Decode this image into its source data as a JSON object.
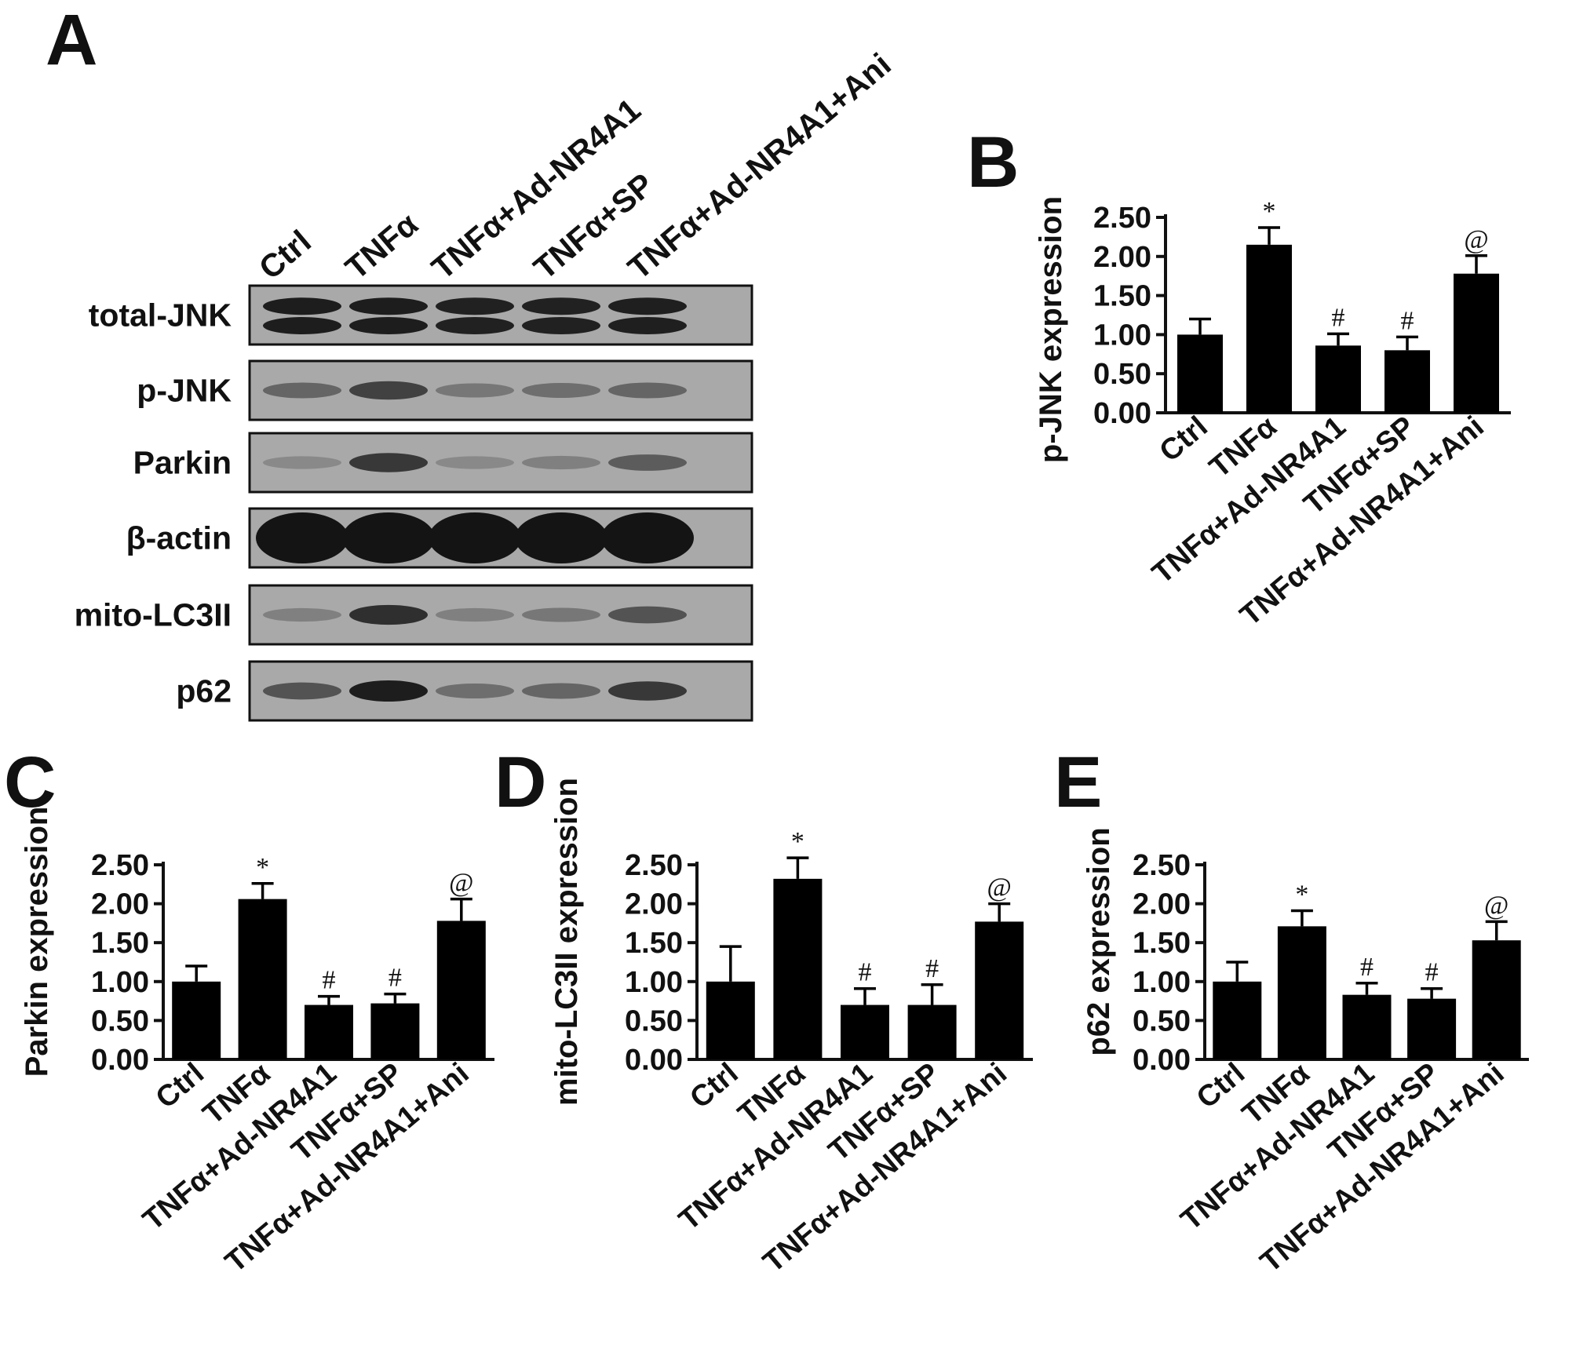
{
  "panels": {
    "A": "A",
    "B": "B",
    "C": "C",
    "D": "D",
    "E": "E"
  },
  "blot": {
    "lanes": [
      "Ctrl",
      "TNFα",
      "TNFα+Ad-NR4A1",
      "TNFα+SP",
      "TNFα+Ad-NR4A1+Ani"
    ],
    "rows": [
      {
        "label": "total-JNK",
        "intensity": [
          0.95,
          0.95,
          0.93,
          0.93,
          0.94
        ],
        "double": true
      },
      {
        "label": "p-JNK",
        "intensity": [
          0.55,
          0.75,
          0.45,
          0.5,
          0.55
        ],
        "double": false
      },
      {
        "label": "Parkin",
        "intensity": [
          0.35,
          0.8,
          0.35,
          0.4,
          0.6
        ],
        "double": false
      },
      {
        "label": "β-actin",
        "intensity": [
          1.0,
          1.0,
          1.0,
          1.0,
          1.0
        ],
        "double": false
      },
      {
        "label": "mito-LC3II",
        "intensity": [
          0.4,
          0.85,
          0.4,
          0.45,
          0.65
        ],
        "double": false
      },
      {
        "label": "p62",
        "intensity": [
          0.65,
          0.95,
          0.5,
          0.55,
          0.8
        ],
        "double": false
      }
    ]
  },
  "chart_data": [
    {
      "panel": "B",
      "type": "bar",
      "categories": [
        "Ctrl",
        "TNFα",
        "TNFα+Ad-NR4A1",
        "TNFα+SP",
        "TNFα+Ad-NR4A1+Ani"
      ],
      "values": [
        1.0,
        2.15,
        0.86,
        0.8,
        1.78
      ],
      "errors": [
        0.2,
        0.22,
        0.15,
        0.17,
        0.23
      ],
      "significance": [
        "",
        "*",
        "#",
        "#",
        "@"
      ],
      "ylabel": "p-JNK expression",
      "ylim": [
        0,
        2.5
      ],
      "yticks": [
        "0.00",
        "0.50",
        "1.00",
        "1.50",
        "2.00",
        "2.50"
      ]
    },
    {
      "panel": "C",
      "type": "bar",
      "categories": [
        "Ctrl",
        "TNFα",
        "TNFα+Ad-NR4A1",
        "TNFα+SP",
        "TNFα+Ad-NR4A1+Ani"
      ],
      "values": [
        1.0,
        2.06,
        0.7,
        0.72,
        1.78
      ],
      "errors": [
        0.2,
        0.2,
        0.11,
        0.12,
        0.28
      ],
      "significance": [
        "",
        "*",
        "#",
        "#",
        "@"
      ],
      "ylabel": "Parkin expression",
      "ylim": [
        0,
        2.5
      ],
      "yticks": [
        "0.00",
        "0.50",
        "1.00",
        "1.50",
        "2.00",
        "2.50"
      ]
    },
    {
      "panel": "D",
      "type": "bar",
      "categories": [
        "Ctrl",
        "TNFα",
        "TNFα+Ad-NR4A1",
        "TNFα+SP",
        "TNFα+Ad-NR4A1+Ani"
      ],
      "values": [
        1.0,
        2.32,
        0.7,
        0.7,
        1.77
      ],
      "errors": [
        0.45,
        0.27,
        0.21,
        0.26,
        0.23
      ],
      "significance": [
        "",
        "*",
        "#",
        "#",
        "@"
      ],
      "ylabel": "mito-LC3II expression",
      "ylim": [
        0,
        2.5
      ],
      "yticks": [
        "0.00",
        "0.50",
        "1.00",
        "1.50",
        "2.00",
        "2.50"
      ]
    },
    {
      "panel": "E",
      "type": "bar",
      "categories": [
        "Ctrl",
        "TNFα",
        "TNFα+Ad-NR4A1",
        "TNFα+SP",
        "TNFα+Ad-NR4A1+Ani"
      ],
      "values": [
        1.0,
        1.71,
        0.83,
        0.78,
        1.53
      ],
      "errors": [
        0.25,
        0.2,
        0.15,
        0.13,
        0.24
      ],
      "significance": [
        "",
        "*",
        "#",
        "#",
        "@"
      ],
      "ylabel": "p62 expression",
      "ylim": [
        0,
        2.5
      ],
      "yticks": [
        "0.00",
        "0.50",
        "1.00",
        "1.50",
        "2.00",
        "2.50"
      ]
    }
  ]
}
